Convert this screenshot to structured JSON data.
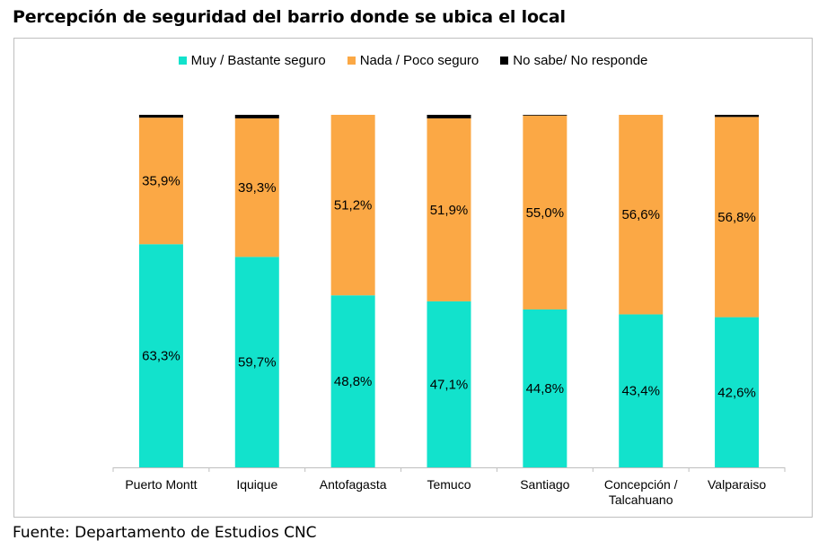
{
  "title": "Percepción de seguridad del barrio donde se ubica el local",
  "source": "Fuente: Departamento de Estudios CNC",
  "colors": {
    "seguro": "#12E2CC",
    "inseguro": "#FBA845",
    "nosabe": "#000000",
    "axis": "#bfbfbf"
  },
  "chart_data": {
    "type": "bar",
    "stacked": true,
    "title": "Percepción de seguridad del barrio donde se ubica el local",
    "categories": [
      "Puerto Montt",
      "Iquique",
      "Antofagasta",
      "Temuco",
      "Santiago",
      "Concepción / Talcahuano",
      "Valparaiso"
    ],
    "series": [
      {
        "name": "Muy / Bastante seguro",
        "values": [
          63.3,
          59.7,
          48.8,
          47.1,
          44.8,
          43.4,
          42.6
        ],
        "labels": [
          "63,3%",
          "59,7%",
          "48,8%",
          "47,1%",
          "44,8%",
          "43,4%",
          "42,6%"
        ]
      },
      {
        "name": "Nada / Poco seguro",
        "values": [
          35.9,
          39.3,
          51.2,
          51.9,
          55.0,
          56.6,
          56.8
        ],
        "labels": [
          "35,9%",
          "39,3%",
          "51,2%",
          "51,9%",
          "55,0%",
          "56,6%",
          "56,8%"
        ]
      },
      {
        "name": "No sabe/ No responde",
        "values": [
          0.8,
          1.0,
          0.0,
          1.0,
          0.2,
          0.0,
          0.6
        ]
      }
    ],
    "ylim": [
      0,
      100
    ],
    "legend": "top",
    "grid": false
  }
}
